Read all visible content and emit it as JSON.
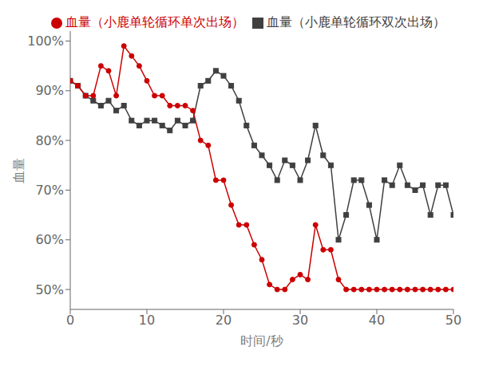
{
  "chart_data": {
    "type": "line",
    "x": [
      0,
      1,
      2,
      3,
      4,
      5,
      6,
      7,
      8,
      9,
      10,
      11,
      12,
      13,
      14,
      15,
      16,
      17,
      18,
      19,
      20,
      21,
      22,
      23,
      24,
      25,
      26,
      27,
      28,
      29,
      30,
      31,
      32,
      33,
      34,
      35,
      36,
      37,
      38,
      39,
      40,
      41,
      42,
      43,
      44,
      45,
      46,
      47,
      48,
      49,
      50
    ],
    "series": [
      {
        "name": "血量（小鹿单轮循环双次出场）",
        "color": "#404040",
        "marker": "square",
        "values": [
          0.92,
          0.91,
          0.89,
          0.88,
          0.87,
          0.88,
          0.86,
          0.87,
          0.84,
          0.83,
          0.84,
          0.84,
          0.83,
          0.82,
          0.84,
          0.83,
          0.84,
          0.91,
          0.92,
          0.94,
          0.93,
          0.91,
          0.88,
          0.83,
          0.79,
          0.77,
          0.75,
          0.72,
          0.76,
          0.75,
          0.72,
          0.76,
          0.83,
          0.77,
          0.75,
          0.6,
          0.65,
          0.72,
          0.72,
          0.67,
          0.6,
          0.72,
          0.71,
          0.75,
          0.71,
          0.7,
          0.71,
          0.65,
          0.71,
          0.71,
          0.65
        ]
      },
      {
        "name": "血量（小鹿单轮循环单次出场）",
        "color": "#cc0000",
        "marker": "circle",
        "values": [
          0.92,
          0.91,
          0.89,
          0.89,
          0.95,
          0.94,
          0.89,
          0.99,
          0.97,
          0.95,
          0.92,
          0.89,
          0.89,
          0.87,
          0.87,
          0.87,
          0.86,
          0.8,
          0.79,
          0.72,
          0.72,
          0.67,
          0.63,
          0.63,
          0.59,
          0.56,
          0.51,
          0.5,
          0.5,
          0.52,
          0.53,
          0.52,
          0.63,
          0.58,
          0.58,
          0.52,
          0.5,
          0.5,
          0.5,
          0.5,
          0.5,
          0.5,
          0.5,
          0.5,
          0.5,
          0.5,
          0.5,
          0.5,
          0.5,
          0.5,
          0.5
        ]
      }
    ],
    "xlabel": "时间/秒",
    "ylabel": "血量",
    "xlim": [
      0,
      50
    ],
    "ylim": [
      0.46,
      1.02
    ],
    "xticks": [
      0,
      10,
      20,
      30,
      40,
      50
    ],
    "yticks": [
      {
        "value": 0.5,
        "label": "50%"
      },
      {
        "value": 0.6,
        "label": "60%"
      },
      {
        "value": 0.7,
        "label": "70%"
      },
      {
        "value": 0.8,
        "label": "80%"
      },
      {
        "value": 0.9,
        "label": "90%"
      },
      {
        "value": 1.0,
        "label": "100%"
      }
    ],
    "legend": "upper right",
    "grid": false
  }
}
